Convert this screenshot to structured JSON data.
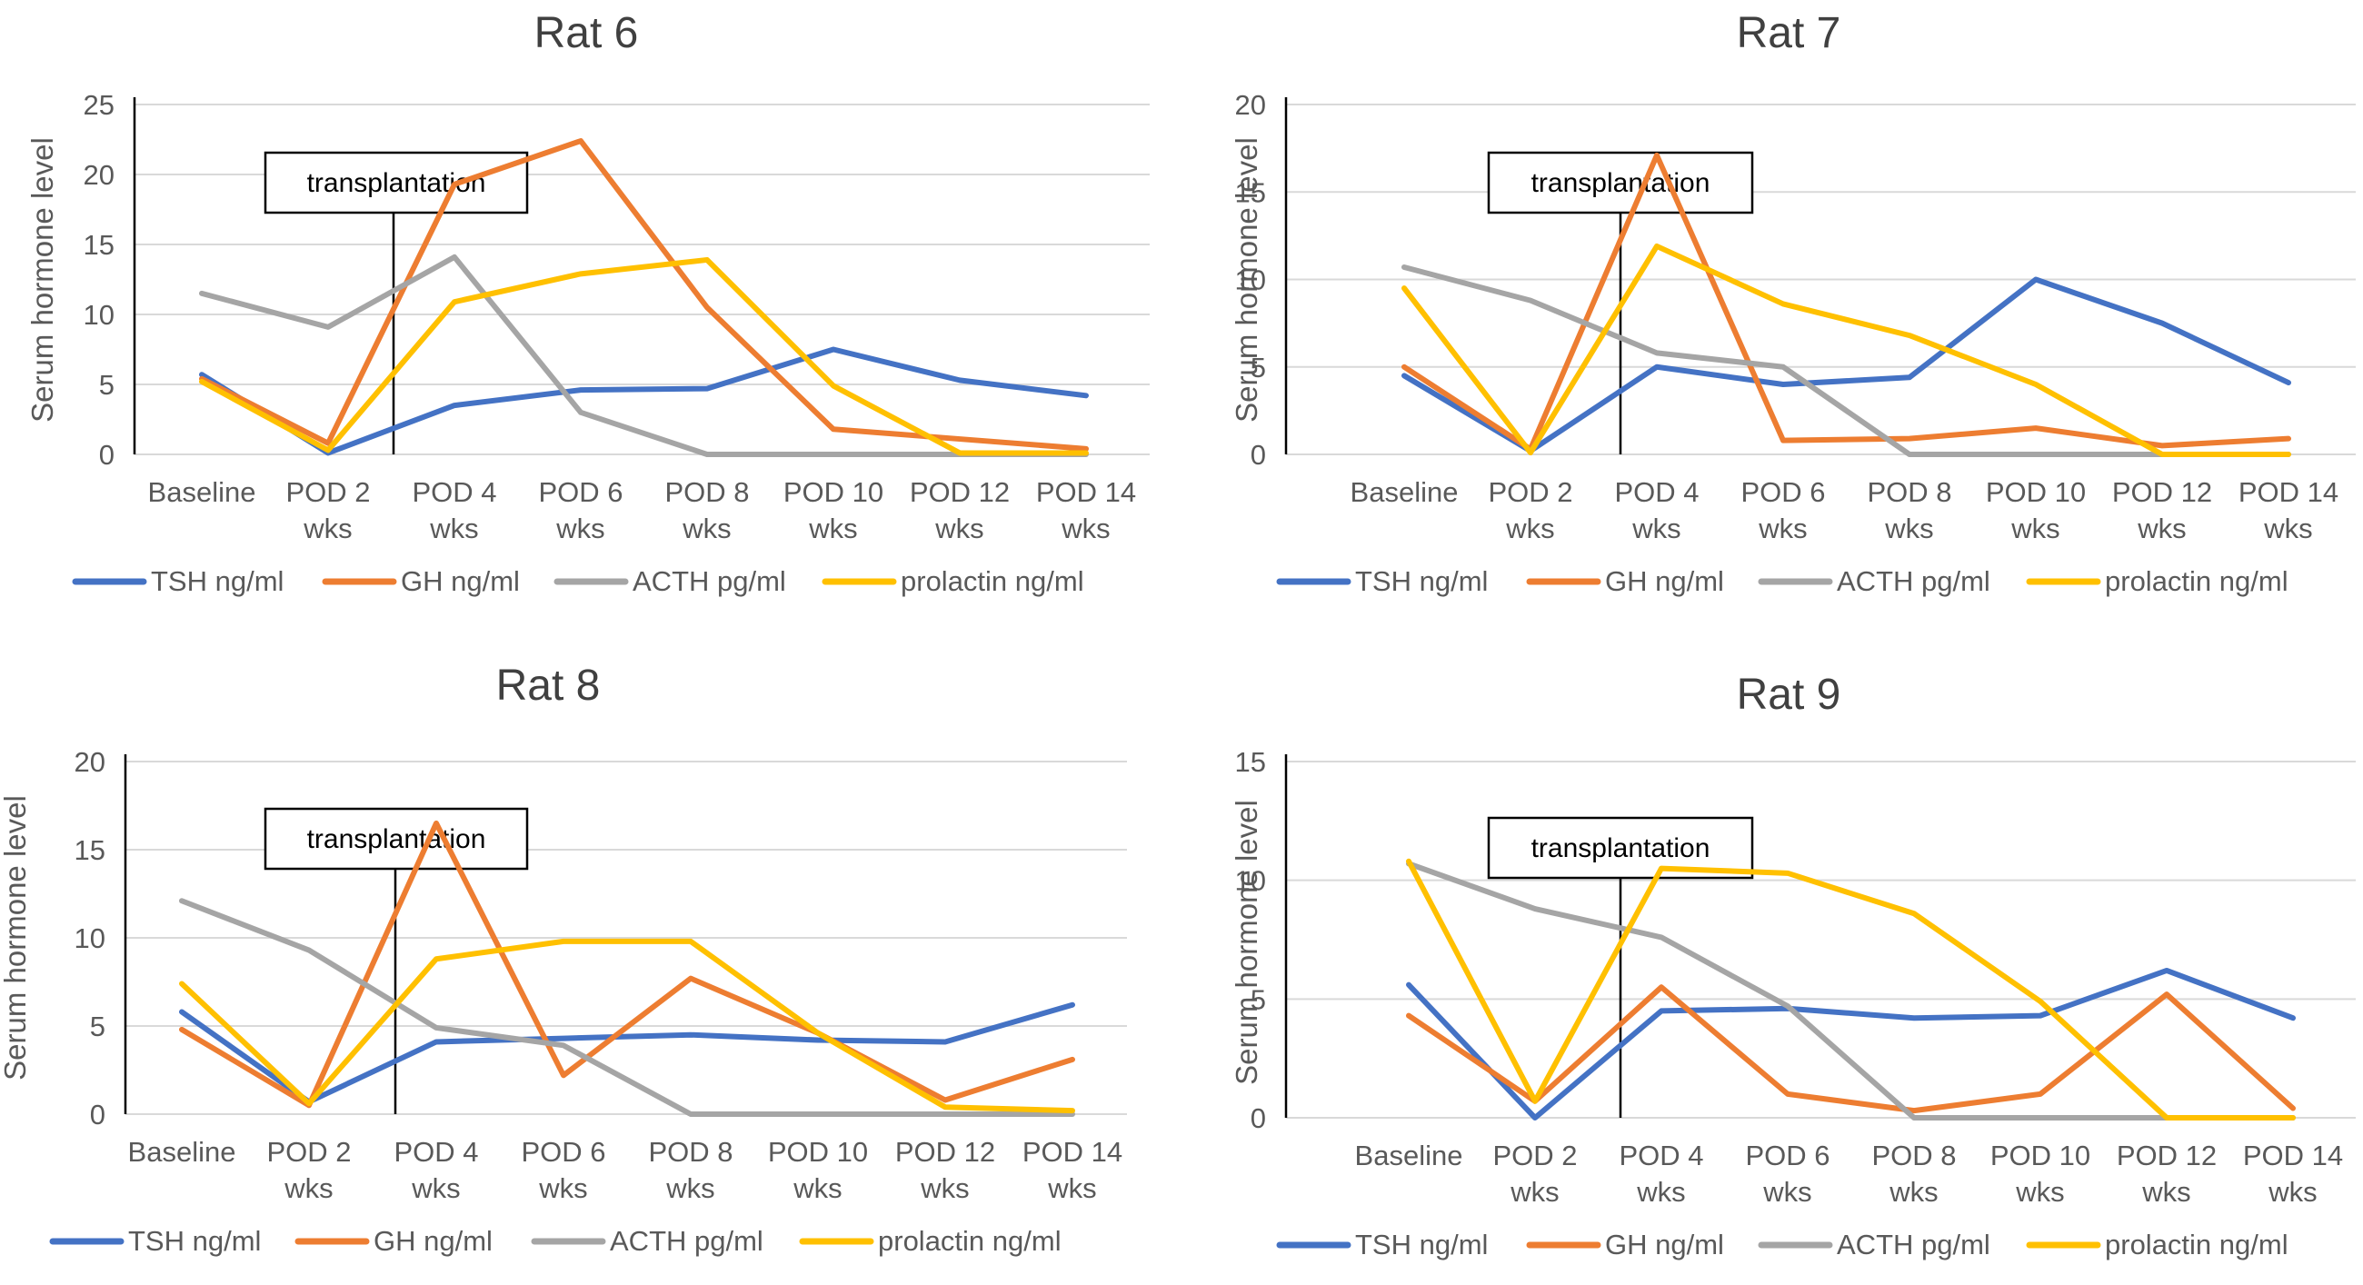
{
  "colors": {
    "tsh": "#4472C4",
    "gh": "#ED7D31",
    "acth": "#A5A5A5",
    "prolactin": "#FFC000",
    "grid": "#D9D9D9",
    "axis": "#000000"
  },
  "chart_data": [
    {
      "type": "line",
      "title": "Rat 6",
      "ylabel": "Serum hormone level",
      "xlabel": "",
      "ylim": [
        0,
        25
      ],
      "yticks": [
        "0",
        "5",
        "10",
        "15",
        "20",
        "25"
      ],
      "categories": [
        [
          "Baseline"
        ],
        [
          "POD 2",
          "wks"
        ],
        [
          "POD 4",
          "wks"
        ],
        [
          "POD 6",
          "wks"
        ],
        [
          "POD 8",
          "wks"
        ],
        [
          "POD 10",
          "wks"
        ],
        [
          "POD 12",
          "wks"
        ],
        [
          "POD 14",
          "wks"
        ]
      ],
      "annotation": "transplantation",
      "series": [
        {
          "name": "TSH ng/ml",
          "color": "#4472C4",
          "values": [
            5.7,
            0.1,
            3.5,
            4.6,
            4.7,
            7.5,
            5.3,
            4.2
          ]
        },
        {
          "name": "GH ng/ml",
          "color": "#ED7D31",
          "values": [
            5.4,
            0.8,
            19.3,
            22.4,
            10.5,
            1.8,
            1.1,
            0.4
          ]
        },
        {
          "name": "ACTH pg/ml",
          "color": "#A5A5A5",
          "values": [
            11.5,
            9.1,
            14.1,
            3.0,
            0.0,
            0.0,
            0.0,
            0.0
          ]
        },
        {
          "name": "prolactin  ng/ml",
          "color": "#FFC000",
          "values": [
            5.2,
            0.3,
            10.9,
            12.9,
            13.9,
            4.9,
            0.1,
            0.1
          ]
        }
      ]
    },
    {
      "type": "line",
      "title": "Rat 7",
      "ylabel": "Serum hormone level",
      "xlabel": "",
      "ylim": [
        0,
        20
      ],
      "yticks": [
        "0",
        "5",
        "10",
        "15",
        "20"
      ],
      "categories": [
        [
          "Baseline"
        ],
        [
          "POD 2",
          "wks"
        ],
        [
          "POD 4",
          "wks"
        ],
        [
          "POD 6",
          "wks"
        ],
        [
          "POD 8",
          "wks"
        ],
        [
          "POD 10",
          "wks"
        ],
        [
          "POD 12",
          "wks"
        ],
        [
          "POD 14",
          "wks"
        ]
      ],
      "annotation": "transplantation",
      "series": [
        {
          "name": "TSH ng/ml",
          "color": "#4472C4",
          "values": [
            4.5,
            0.2,
            5.0,
            4.0,
            4.4,
            10.0,
            7.5,
            4.1
          ]
        },
        {
          "name": "GH ng/ml",
          "color": "#ED7D31",
          "values": [
            5.0,
            0.3,
            17.1,
            0.8,
            0.9,
            1.5,
            0.5,
            0.9
          ]
        },
        {
          "name": "ACTH pg/ml",
          "color": "#A5A5A5",
          "values": [
            10.7,
            8.8,
            5.8,
            5.0,
            0.0,
            0.0,
            0.0,
            0.0
          ]
        },
        {
          "name": "prolactin  ng/ml",
          "color": "#FFC000",
          "values": [
            9.5,
            0.1,
            11.9,
            8.6,
            6.8,
            4.0,
            0.0,
            0.0
          ]
        }
      ]
    },
    {
      "type": "line",
      "title": "Rat 8",
      "ylabel": "Serum hormone level",
      "xlabel": "",
      "ylim": [
        0,
        20
      ],
      "yticks": [
        "0",
        "5",
        "10",
        "15",
        "20"
      ],
      "categories": [
        [
          "Baseline"
        ],
        [
          "POD 2",
          "wks"
        ],
        [
          "POD 4",
          "wks"
        ],
        [
          "POD 6",
          "wks"
        ],
        [
          "POD 8",
          "wks"
        ],
        [
          "POD 10",
          "wks"
        ],
        [
          "POD 12",
          "wks"
        ],
        [
          "POD 14",
          "wks"
        ]
      ],
      "annotation": "transplantation",
      "series": [
        {
          "name": "TSH ng/ml",
          "color": "#4472C4",
          "values": [
            5.8,
            0.7,
            4.1,
            4.3,
            4.5,
            4.2,
            4.1,
            6.2
          ]
        },
        {
          "name": "GH ng/ml",
          "color": "#ED7D31",
          "values": [
            4.8,
            0.5,
            16.5,
            2.2,
            7.7,
            4.6,
            0.8,
            3.1
          ]
        },
        {
          "name": "ACTH pg/ml",
          "color": "#A5A5A5",
          "values": [
            12.1,
            9.3,
            4.9,
            3.9,
            0.0,
            0.0,
            0.0,
            0.0
          ]
        },
        {
          "name": "prolactin  ng/ml",
          "color": "#FFC000",
          "values": [
            7.4,
            0.6,
            8.8,
            9.8,
            9.8,
            4.6,
            0.4,
            0.2
          ]
        }
      ]
    },
    {
      "type": "line",
      "title": "Rat 9",
      "ylabel": "Serum hormone level",
      "xlabel": "",
      "ylim": [
        0,
        15
      ],
      "yticks": [
        "0",
        "5",
        "10",
        "15"
      ],
      "categories": [
        [
          "Baseline"
        ],
        [
          "POD 2",
          "wks"
        ],
        [
          "POD 4",
          "wks"
        ],
        [
          "POD 6",
          "wks"
        ],
        [
          "POD 8",
          "wks"
        ],
        [
          "POD 10",
          "wks"
        ],
        [
          "POD 12",
          "wks"
        ],
        [
          "POD 14",
          "wks"
        ]
      ],
      "annotation": "transplantation",
      "series": [
        {
          "name": "TSH ng/ml",
          "color": "#4472C4",
          "values": [
            5.6,
            0.0,
            4.5,
            4.6,
            4.2,
            4.3,
            6.2,
            4.2
          ]
        },
        {
          "name": "GH ng/ml",
          "color": "#ED7D31",
          "values": [
            4.3,
            0.7,
            5.5,
            1.0,
            0.3,
            1.0,
            5.2,
            0.4
          ]
        },
        {
          "name": "ACTH pg/ml",
          "color": "#A5A5A5",
          "values": [
            10.7,
            8.8,
            7.6,
            4.7,
            0.0,
            0.0,
            0.0,
            0.0
          ]
        },
        {
          "name": "prolactin  ng/ml",
          "color": "#FFC000",
          "values": [
            10.8,
            0.7,
            10.5,
            10.3,
            8.6,
            4.9,
            0.0,
            0.0
          ]
        }
      ]
    }
  ]
}
